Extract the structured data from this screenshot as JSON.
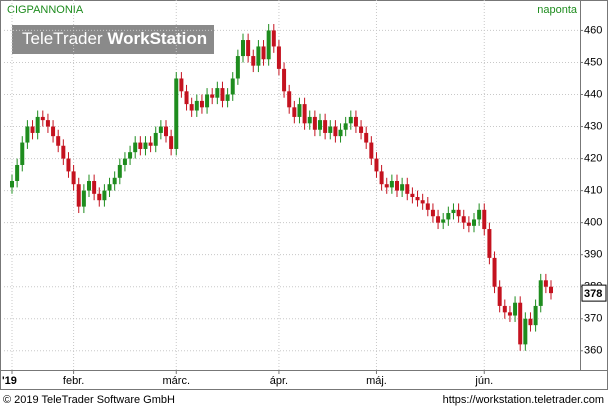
{
  "chart_data": {
    "type": "candlestick",
    "title": "CIGPANNONIA",
    "subtitle": "naponta",
    "logo": {
      "light": "TeleTrader",
      "bold": "WorkStation"
    },
    "footer": {
      "left": "© 2019 TeleTrader Software GmbH",
      "right": "https://workstation.teletrader.com"
    },
    "categories": [
      "'19",
      null,
      null,
      null,
      null,
      null,
      null,
      null,
      null,
      null,
      null,
      null,
      "febr.",
      null,
      null,
      null,
      null,
      null,
      null,
      null,
      null,
      null,
      null,
      null,
      null,
      null,
      null,
      null,
      null,
      null,
      null,
      null,
      "márc.",
      null,
      null,
      null,
      null,
      null,
      null,
      null,
      null,
      null,
      null,
      null,
      null,
      null,
      null,
      null,
      null,
      null,
      null,
      null,
      "ápr.",
      null,
      null,
      null,
      null,
      null,
      null,
      null,
      null,
      null,
      null,
      null,
      null,
      null,
      null,
      null,
      null,
      null,
      null,
      "máj.",
      null,
      null,
      null,
      null,
      null,
      null,
      null,
      null,
      null,
      null,
      null,
      null,
      null,
      null,
      null,
      null,
      null,
      null,
      null,
      null,
      "jún.",
      null,
      null,
      null,
      null,
      null,
      null,
      null,
      null,
      null,
      null,
      null,
      null,
      null
    ],
    "series": [
      {
        "up_color": "#1e8c1e",
        "down_color": "#c4121f",
        "open": [
          411,
          413,
          418,
          425,
          430,
          428,
          433,
          432,
          430,
          427,
          424,
          420,
          416,
          412,
          405,
          410,
          413,
          409,
          407,
          410,
          412,
          414,
          418,
          420,
          422,
          425,
          423,
          425,
          424,
          428,
          430,
          427,
          423,
          445,
          441,
          437,
          435,
          438,
          436,
          440,
          439,
          442,
          438,
          440,
          445,
          452,
          457,
          452,
          449,
          455,
          451,
          460,
          455,
          448,
          441,
          436,
          433,
          437,
          431,
          433,
          429,
          432,
          428,
          430,
          427,
          429,
          431,
          433,
          430,
          428,
          425,
          420,
          416,
          412,
          411,
          413,
          410,
          412,
          409,
          408,
          407,
          406,
          404,
          402,
          400,
          401,
          403,
          404,
          402,
          400,
          399,
          401,
          404,
          398,
          389,
          380,
          374,
          372,
          371,
          375,
          362,
          370,
          368,
          374,
          382,
          380
        ],
        "high": [
          415,
          420,
          427,
          432,
          432,
          435,
          435,
          434,
          432,
          429,
          426,
          422,
          418,
          414,
          412,
          415,
          415,
          411,
          412,
          414,
          416,
          420,
          422,
          424,
          427,
          427,
          427,
          427,
          430,
          432,
          432,
          429,
          447,
          447,
          443,
          439,
          440,
          440,
          442,
          442,
          444,
          444,
          442,
          447,
          454,
          459,
          459,
          454,
          457,
          457,
          462,
          462,
          457,
          450,
          443,
          438,
          439,
          439,
          435,
          435,
          434,
          434,
          432,
          432,
          431,
          433,
          435,
          435,
          432,
          430,
          427,
          422,
          418,
          414,
          415,
          415,
          414,
          414,
          411,
          410,
          409,
          408,
          406,
          404,
          403,
          405,
          406,
          406,
          404,
          402,
          403,
          406,
          406,
          400,
          391,
          382,
          376,
          374,
          377,
          377,
          372,
          372,
          376,
          384,
          384,
          382
        ],
        "low": [
          409,
          411,
          416,
          423,
          426,
          426,
          430,
          428,
          425,
          422,
          418,
          414,
          410,
          403,
          403,
          408,
          407,
          405,
          405,
          408,
          410,
          412,
          416,
          418,
          420,
          421,
          421,
          422,
          422,
          426,
          425,
          421,
          421,
          439,
          435,
          433,
          433,
          434,
          434,
          437,
          437,
          436,
          436,
          438,
          443,
          450,
          450,
          447,
          447,
          449,
          449,
          453,
          446,
          439,
          434,
          431,
          431,
          429,
          429,
          427,
          427,
          426,
          426,
          425,
          425,
          427,
          429,
          428,
          426,
          423,
          418,
          414,
          410,
          409,
          409,
          408,
          408,
          407,
          406,
          405,
          404,
          402,
          400,
          398,
          398,
          399,
          401,
          400,
          398,
          397,
          397,
          399,
          396,
          387,
          378,
          372,
          370,
          369,
          369,
          360,
          360,
          366,
          366,
          372,
          378,
          376
        ],
        "close": [
          413,
          418,
          425,
          430,
          428,
          433,
          432,
          430,
          427,
          424,
          420,
          416,
          412,
          405,
          410,
          413,
          409,
          407,
          410,
          412,
          414,
          418,
          420,
          422,
          425,
          423,
          425,
          424,
          428,
          430,
          427,
          423,
          445,
          441,
          437,
          435,
          438,
          436,
          440,
          439,
          442,
          438,
          440,
          445,
          452,
          457,
          452,
          449,
          455,
          451,
          460,
          455,
          448,
          441,
          436,
          433,
          437,
          431,
          433,
          429,
          432,
          428,
          430,
          427,
          429,
          431,
          433,
          430,
          428,
          425,
          420,
          416,
          412,
          411,
          413,
          410,
          412,
          409,
          408,
          407,
          406,
          404,
          402,
          400,
          401,
          403,
          404,
          402,
          400,
          399,
          401,
          404,
          398,
          389,
          380,
          374,
          372,
          371,
          375,
          362,
          370,
          368,
          374,
          382,
          380,
          378
        ]
      }
    ],
    "ylim": [
      354,
      469.5
    ],
    "yticks": [
      360,
      370,
      380,
      390,
      400,
      410,
      420,
      430,
      440,
      450,
      460
    ],
    "grid": true
  }
}
